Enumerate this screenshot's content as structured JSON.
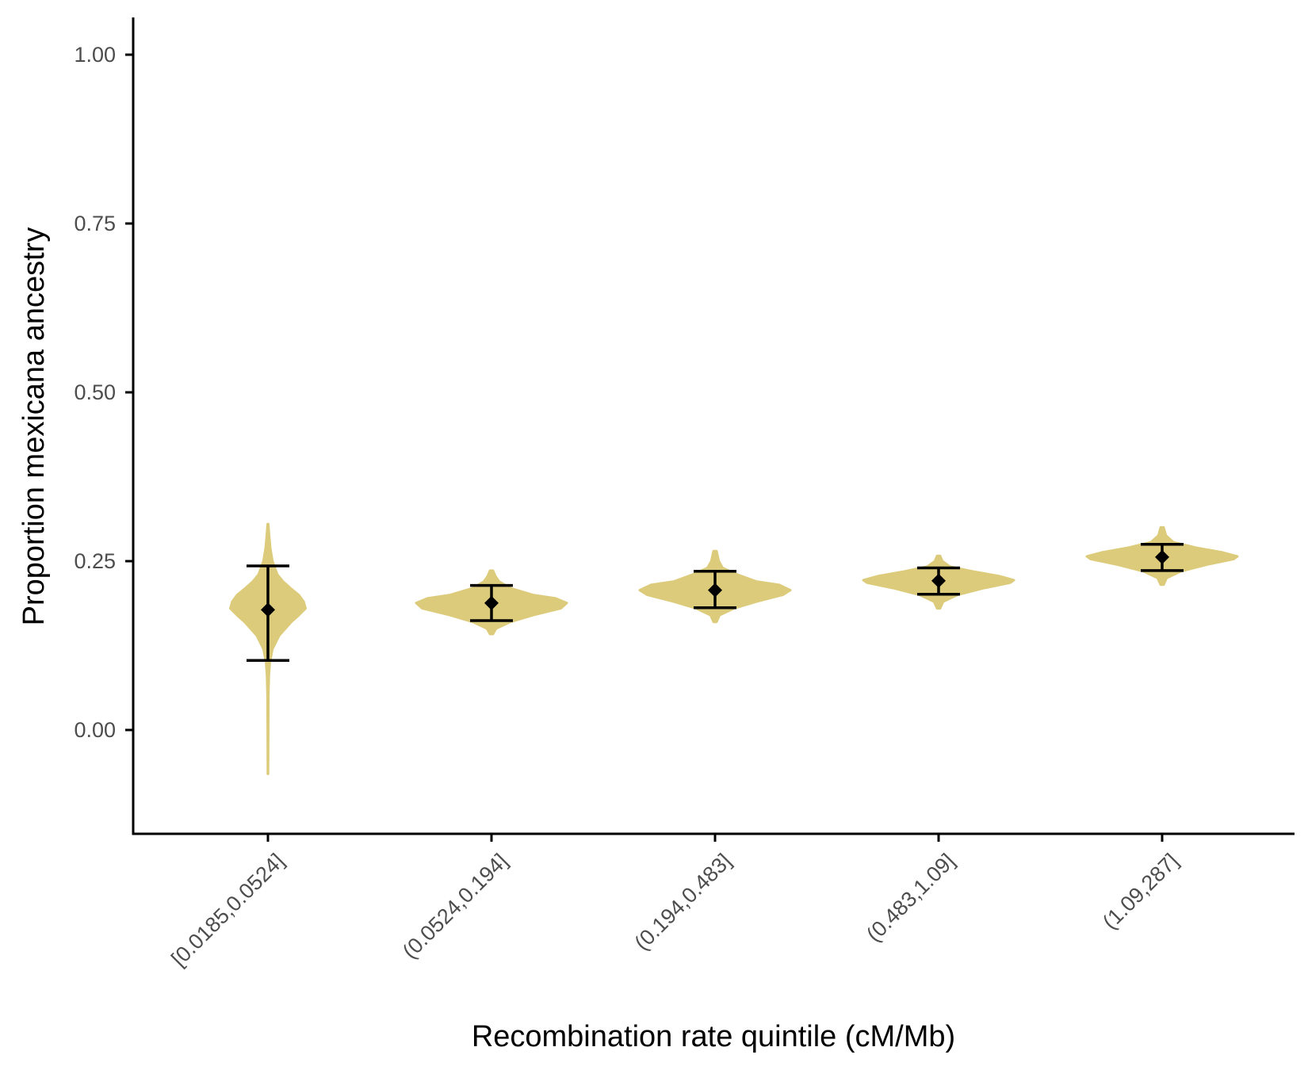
{
  "chart_data": {
    "type": "violin",
    "title": "",
    "xlabel": "Recombination rate quintile (cM/Mb)",
    "ylabel": "Proportion mexicana ancestry",
    "ylim": [
      -0.15,
      1.05
    ],
    "yticks": [
      0.0,
      0.25,
      0.5,
      0.75,
      1.0
    ],
    "ytick_labels": [
      "0.00",
      "0.25",
      "0.50",
      "0.75",
      "1.00"
    ],
    "categories": [
      "[0.0185,0.0524]",
      "(0.0524,0.194]",
      "(0.194,0.483]",
      "(0.483,1.09]",
      "(1.09,287]"
    ],
    "violin_color": "#dccb7a",
    "point_color": "#000000",
    "grid": false,
    "legend": "none",
    "series": [
      {
        "category": "[0.0185,0.0524]",
        "mean": 0.178,
        "sd_low": 0.103,
        "sd_high": 0.243,
        "min": -0.065,
        "max": 0.305,
        "density": [
          [
            -0.065,
            0.005
          ],
          [
            0.0,
            0.008
          ],
          [
            0.05,
            0.012
          ],
          [
            0.08,
            0.025
          ],
          [
            0.1,
            0.05
          ],
          [
            0.12,
            0.12
          ],
          [
            0.14,
            0.3
          ],
          [
            0.16,
            0.62
          ],
          [
            0.17,
            0.82
          ],
          [
            0.18,
            1.0
          ],
          [
            0.19,
            0.95
          ],
          [
            0.2,
            0.82
          ],
          [
            0.21,
            0.6
          ],
          [
            0.22,
            0.4
          ],
          [
            0.23,
            0.25
          ],
          [
            0.25,
            0.12
          ],
          [
            0.27,
            0.06
          ],
          [
            0.29,
            0.03
          ],
          [
            0.305,
            0.008
          ]
        ]
      },
      {
        "category": "(0.0524,0.194]",
        "mean": 0.188,
        "sd_low": 0.162,
        "sd_high": 0.214,
        "min": 0.142,
        "max": 0.236,
        "density": [
          [
            0.142,
            0.02
          ],
          [
            0.15,
            0.06
          ],
          [
            0.16,
            0.25
          ],
          [
            0.17,
            0.55
          ],
          [
            0.18,
            0.92
          ],
          [
            0.188,
            1.0
          ],
          [
            0.195,
            0.85
          ],
          [
            0.2,
            0.55
          ],
          [
            0.21,
            0.25
          ],
          [
            0.22,
            0.1
          ],
          [
            0.228,
            0.05
          ],
          [
            0.236,
            0.02
          ]
        ]
      },
      {
        "category": "(0.194,0.483]",
        "mean": 0.207,
        "sd_low": 0.181,
        "sd_high": 0.235,
        "min": 0.16,
        "max": 0.265,
        "density": [
          [
            0.16,
            0.02
          ],
          [
            0.17,
            0.06
          ],
          [
            0.18,
            0.25
          ],
          [
            0.19,
            0.55
          ],
          [
            0.2,
            0.9
          ],
          [
            0.207,
            1.0
          ],
          [
            0.215,
            0.85
          ],
          [
            0.22,
            0.55
          ],
          [
            0.23,
            0.3
          ],
          [
            0.24,
            0.1
          ],
          [
            0.25,
            0.05
          ],
          [
            0.265,
            0.02
          ]
        ]
      },
      {
        "category": "(0.483,1.09]",
        "mean": 0.221,
        "sd_low": 0.201,
        "sd_high": 0.24,
        "min": 0.18,
        "max": 0.258,
        "density": [
          [
            0.18,
            0.02
          ],
          [
            0.19,
            0.06
          ],
          [
            0.2,
            0.25
          ],
          [
            0.21,
            0.6
          ],
          [
            0.218,
            0.95
          ],
          [
            0.222,
            1.0
          ],
          [
            0.228,
            0.8
          ],
          [
            0.235,
            0.45
          ],
          [
            0.242,
            0.15
          ],
          [
            0.25,
            0.05
          ],
          [
            0.258,
            0.02
          ]
        ]
      },
      {
        "category": "(1.09,287]",
        "mean": 0.256,
        "sd_low": 0.236,
        "sd_high": 0.275,
        "min": 0.215,
        "max": 0.3,
        "density": [
          [
            0.215,
            0.02
          ],
          [
            0.225,
            0.06
          ],
          [
            0.235,
            0.25
          ],
          [
            0.245,
            0.6
          ],
          [
            0.253,
            0.95
          ],
          [
            0.257,
            1.0
          ],
          [
            0.263,
            0.8
          ],
          [
            0.27,
            0.45
          ],
          [
            0.278,
            0.15
          ],
          [
            0.288,
            0.05
          ],
          [
            0.3,
            0.02
          ]
        ]
      }
    ]
  }
}
